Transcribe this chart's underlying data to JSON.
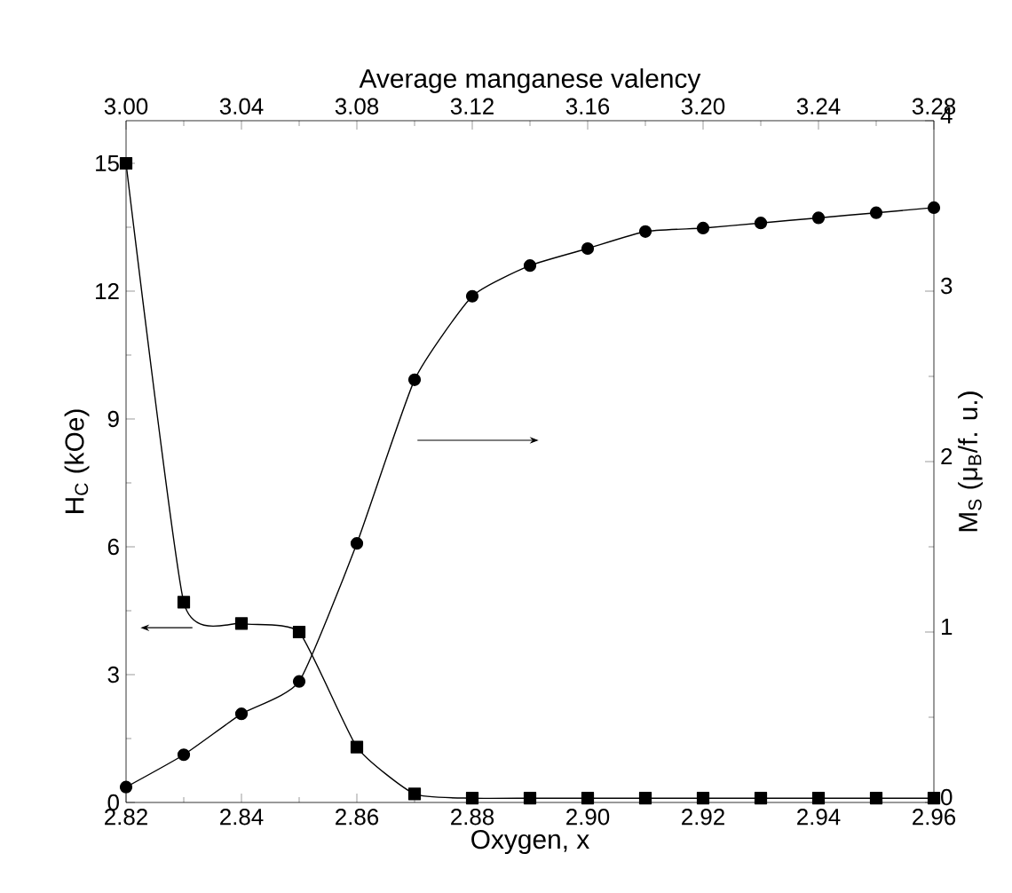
{
  "chart_data": {
    "type": "line",
    "xlabel": "Oxygen, x",
    "ylabel": "H$_{C}$ (kOe)",
    "y2label": "M$_{S}$ (μ$_{B}$/f. u.)",
    "x2label": "Average manganese valency",
    "x": [
      2.82,
      2.83,
      2.84,
      2.85,
      2.86,
      2.87,
      2.88,
      2.89,
      2.9,
      2.91,
      2.92,
      2.93,
      2.94,
      2.95,
      2.96
    ],
    "xlim": [
      2.82,
      2.96
    ],
    "xticks": [
      {
        "value": 2.82,
        "label": "2.82"
      },
      {
        "value": 2.84,
        "label": "2.84"
      },
      {
        "value": 2.86,
        "label": "2.86"
      },
      {
        "value": 2.88,
        "label": "2.88"
      },
      {
        "value": 2.9,
        "label": "2.90"
      },
      {
        "value": 2.92,
        "label": "2.92"
      },
      {
        "value": 2.94,
        "label": "2.94"
      },
      {
        "value": 2.96,
        "label": "2.96"
      }
    ],
    "x2lim": [
      3.0,
      3.28
    ],
    "x2ticks": [
      {
        "value": 3.0,
        "label": "3.00"
      },
      {
        "value": 3.04,
        "label": "3.04"
      },
      {
        "value": 3.08,
        "label": "3.08"
      },
      {
        "value": 3.12,
        "label": "3.12"
      },
      {
        "value": 3.16,
        "label": "3.16"
      },
      {
        "value": 3.2,
        "label": "3.20"
      },
      {
        "value": 3.24,
        "label": "3.24"
      },
      {
        "value": 3.28,
        "label": "3.28"
      }
    ],
    "ylim": [
      0,
      16
    ],
    "yticks": [
      0,
      3,
      6,
      9,
      12,
      15
    ],
    "y2lim": [
      0,
      4
    ],
    "y2ticks": [
      0,
      1,
      2,
      3,
      4
    ],
    "line_style": "solid",
    "series": [
      {
        "color": "#000000",
        "marker": "square",
        "values": [
          15,
          4.7,
          4.2,
          4.0,
          1.3,
          0.2,
          0.1,
          0.1,
          0.1,
          0.1,
          0.1,
          0.1,
          0.1,
          0.1,
          0.1
        ]
      },
      {
        "color": "#000000",
        "marker": "circle",
        "axis": "y2",
        "values": [
          0.09,
          0.28,
          0.52,
          0.71,
          1.52,
          2.48,
          2.97,
          3.15,
          3.25,
          3.35,
          3.37,
          3.4,
          3.43,
          3.46,
          3.49
        ]
      }
    ]
  }
}
